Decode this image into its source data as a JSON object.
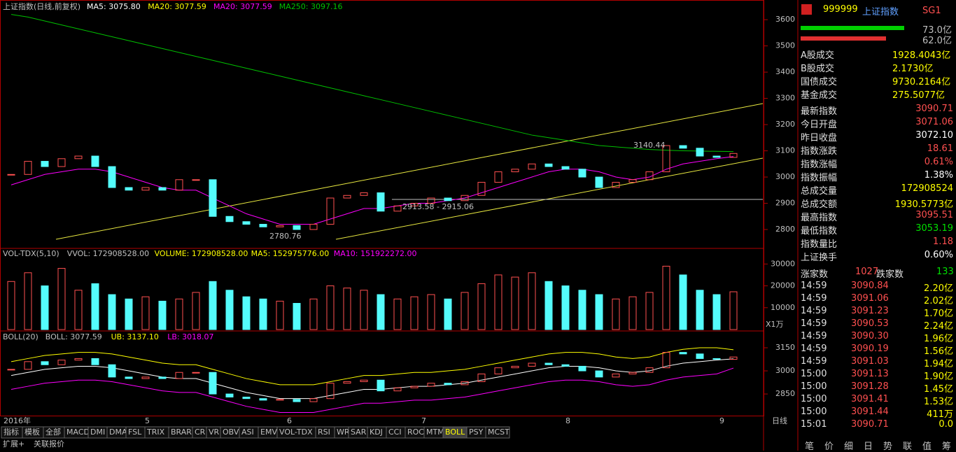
{
  "legend": {
    "title": "上证指数(日线,前复权)",
    "items": [
      {
        "text": "MA5: 3075.80",
        "color": "#ffffff"
      },
      {
        "text": "MA20: 3077.59",
        "color": "#ffff00"
      },
      {
        "text": "MA20: 3077.59",
        "color": "#ff00ff"
      },
      {
        "text": "MA250: 3097.16",
        "color": "#00c000"
      }
    ]
  },
  "price_chart": {
    "ylim": [
      2728,
      3675
    ],
    "yticks": [
      2800,
      2900,
      3000,
      3100,
      3200,
      3300,
      3400,
      3500,
      3600
    ],
    "close": [
      3010,
      3060,
      3040,
      3070,
      3080,
      3040,
      2960,
      2950,
      2960,
      2950,
      2990,
      2990,
      2850,
      2830,
      2820,
      2810,
      2815,
      2800,
      2820,
      2920,
      2930,
      2940,
      2870,
      2890,
      2900,
      2920,
      2910,
      2930,
      2980,
      3020,
      3030,
      3050,
      3040,
      3030,
      3000,
      2960,
      2980,
      2990,
      3020,
      3120,
      3110,
      3080,
      3075,
      3090
    ],
    "ma20": [
      2970,
      2990,
      3010,
      3020,
      3030,
      3030,
      3020,
      3000,
      2980,
      2960,
      2950,
      2950,
      2920,
      2890,
      2860,
      2840,
      2820,
      2820,
      2820,
      2840,
      2860,
      2880,
      2880,
      2890,
      2900,
      2900,
      2910,
      2920,
      2940,
      2960,
      2980,
      3000,
      3020,
      3030,
      3030,
      3020,
      3000,
      2990,
      3000,
      3030,
      3050,
      3060,
      3070,
      3078
    ],
    "ma250": [
      3620,
      3610,
      3595,
      3580,
      3565,
      3550,
      3535,
      3520,
      3505,
      3490,
      3475,
      3460,
      3445,
      3430,
      3415,
      3400,
      3385,
      3370,
      3355,
      3340,
      3325,
      3310,
      3295,
      3280,
      3265,
      3250,
      3235,
      3220,
      3205,
      3190,
      3175,
      3160,
      3150,
      3140,
      3130,
      3120,
      3115,
      3110,
      3105,
      3102,
      3100,
      3099,
      3098,
      3097
    ],
    "annotations": [
      "3140.44",
      "2780.76",
      "2913.58 - 2915.06"
    ]
  },
  "volume_chart": {
    "legend": [
      "VOL-TDX(5,10)",
      "VVOL: 172908528.00",
      "VOLUME: 172908528.00",
      "MA5: 152975776.00",
      "MA10: 151922272.00"
    ],
    "unit": "X1万",
    "ylim": [
      0,
      36500
    ],
    "yticks": [
      10000,
      20000,
      30000
    ],
    "values": [
      22000,
      26000,
      20000,
      28000,
      18000,
      21000,
      16000,
      14000,
      15000,
      13000,
      14000,
      17000,
      22000,
      18000,
      15000,
      14000,
      13000,
      12000,
      14000,
      20000,
      19000,
      18000,
      16000,
      14000,
      15000,
      16000,
      14000,
      17000,
      21000,
      25000,
      24000,
      26000,
      22000,
      20000,
      18000,
      16000,
      14000,
      15000,
      17000,
      29000,
      25000,
      18000,
      16000,
      17290
    ]
  },
  "boll_chart": {
    "legend": [
      "BOLL(20)",
      "BOLL: 3077.59",
      "UB: 3137.10",
      "LB: 3018.07"
    ],
    "ylim": [
      2705,
      3250
    ],
    "yticks": [
      2850,
      3000,
      3150
    ],
    "ub": [
      3060,
      3080,
      3100,
      3110,
      3120,
      3120,
      3110,
      3090,
      3070,
      3050,
      3040,
      3040,
      3010,
      2980,
      2950,
      2930,
      2910,
      2910,
      2910,
      2930,
      2950,
      2970,
      2970,
      2980,
      2990,
      2990,
      3000,
      3010,
      3030,
      3050,
      3070,
      3090,
      3110,
      3120,
      3120,
      3110,
      3090,
      3080,
      3090,
      3120,
      3140,
      3150,
      3150,
      3137
    ],
    "lb": [
      2880,
      2900,
      2920,
      2930,
      2940,
      2940,
      2930,
      2910,
      2890,
      2870,
      2860,
      2860,
      2830,
      2800,
      2770,
      2750,
      2730,
      2730,
      2730,
      2750,
      2770,
      2790,
      2790,
      2800,
      2810,
      2810,
      2820,
      2830,
      2850,
      2870,
      2890,
      2910,
      2930,
      2940,
      2940,
      2930,
      2910,
      2900,
      2910,
      2940,
      2960,
      2970,
      2980,
      3018
    ]
  },
  "date_axis": [
    "2016年",
    "5",
    "6",
    "7",
    "8",
    "9"
  ],
  "period": "日线",
  "tabs": [
    "指标",
    "模板",
    "全部",
    "MACD",
    "DMI",
    "DMA",
    "FSL",
    "TRIX",
    "BRAR",
    "CR",
    "VR",
    "OBV",
    "ASI",
    "EMV",
    "VOL-TDX",
    "RSI",
    "WR",
    "SAR",
    "KDJ",
    "CCI",
    "ROC",
    "MTM",
    "BOLL",
    "PSY",
    "MCST"
  ],
  "bottom_tabs": [
    "扩展+",
    "关联报价"
  ],
  "quote": {
    "code": "999999",
    "name": "上证指数",
    "tag": "SG1",
    "bars": [
      "73.0亿",
      "62.0亿"
    ],
    "turnover": [
      [
        "A股成交",
        "1928.4043亿"
      ],
      [
        "B股成交",
        "2.1730亿"
      ],
      [
        "国债成交",
        "9730.2164亿"
      ],
      [
        "基金成交",
        "275.5077亿"
      ]
    ],
    "stats": [
      [
        "最新指数",
        "3090.71",
        "#ff5050"
      ],
      [
        "今日开盘",
        "3071.06",
        "#ff5050"
      ],
      [
        "昨日收盘",
        "3072.10",
        "#ffffff"
      ],
      [
        "指数涨跌",
        "18.61",
        "#ff5050"
      ],
      [
        "指数涨幅",
        "0.61%",
        "#ff5050"
      ],
      [
        "指数振幅",
        "1.38%",
        "#ffffff"
      ],
      [
        "总成交量",
        "172908524",
        "#ffff00"
      ],
      [
        "总成交额",
        "1930.5773亿",
        "#ffff00"
      ],
      [
        "最高指数",
        "3095.51",
        "#ff5050"
      ],
      [
        "最低指数",
        "3053.19",
        "#00e000"
      ],
      [
        "指数量比",
        "1.18",
        "#ff5050"
      ],
      [
        "上证换手",
        "0.60%",
        "#ffffff"
      ]
    ],
    "breadth": [
      "涨家数",
      "1027",
      "跌家数",
      "133"
    ],
    "trades": [
      [
        "14:59",
        "3090.84",
        "2.20亿"
      ],
      [
        "14:59",
        "3091.06",
        "2.02亿"
      ],
      [
        "14:59",
        "3091.23",
        "1.70亿"
      ],
      [
        "14:59",
        "3090.53",
        "2.24亿"
      ],
      [
        "14:59",
        "3090.30",
        "1.96亿"
      ],
      [
        "14:59",
        "3090.19",
        "1.56亿"
      ],
      [
        "14:59",
        "3091.03",
        "1.94亿"
      ],
      [
        "15:00",
        "3091.13",
        "1.90亿"
      ],
      [
        "15:00",
        "3091.28",
        "1.45亿"
      ],
      [
        "15:00",
        "3091.41",
        "1.53亿"
      ],
      [
        "15:00",
        "3091.44",
        "411万"
      ],
      [
        "15:01",
        "3090.71",
        "0.0"
      ]
    ],
    "side_tabs": [
      "笔",
      "价",
      "细",
      "日",
      "势",
      "联",
      "值",
      "筹"
    ]
  }
}
